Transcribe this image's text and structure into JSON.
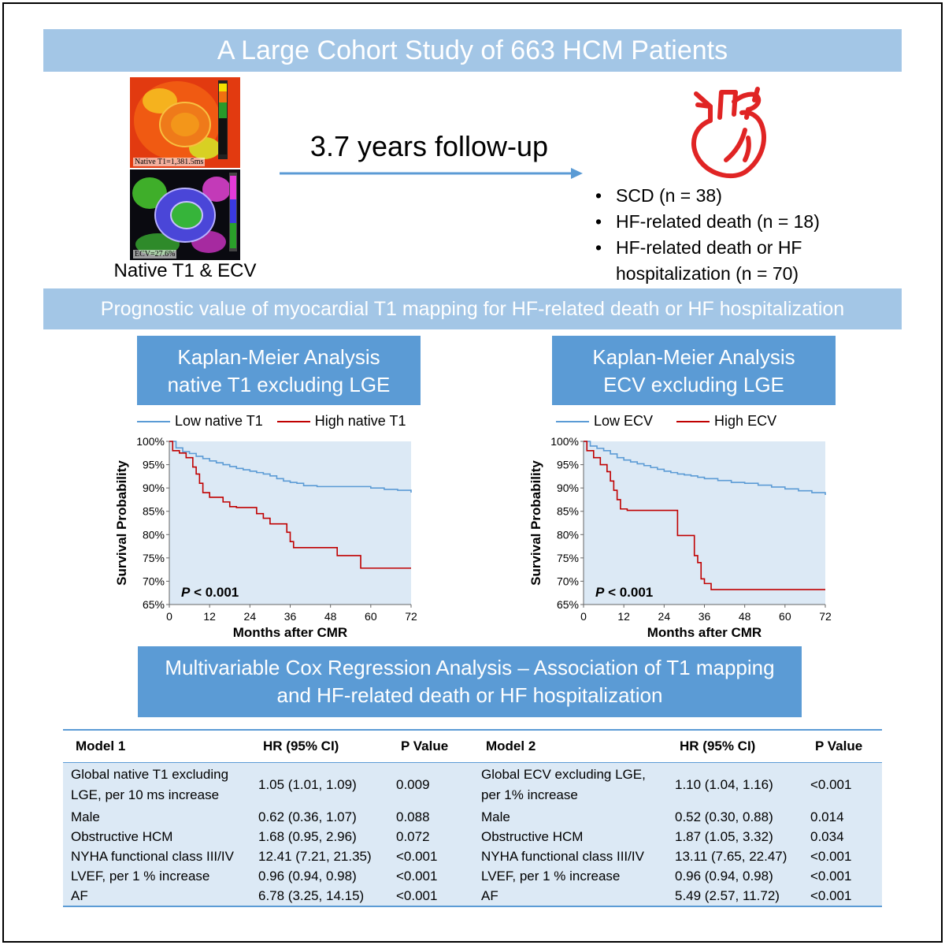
{
  "title": "A Large Cohort Study of 663 HCM Patients",
  "mri": {
    "native_label": "Native T1=1,381.5ms",
    "ecv_label": "ECV=27.6%",
    "caption": "Native T1 & ECV"
  },
  "follow_up": "3.7 years follow-up",
  "outcomes": [
    "SCD (n = 38)",
    "HF-related death (n = 18)",
    "HF-related death or HF hospitalization (n = 70)"
  ],
  "section2_title": "Prognostic value of myocardial T1 mapping for HF-related death or HF hospitalization",
  "km_titles": {
    "left_line1": "Kaplan-Meier Analysis",
    "left_line2": "native T1 excluding LGE",
    "right_line1": "Kaplan-Meier Analysis",
    "right_line2": "ECV excluding LGE"
  },
  "colors": {
    "low": "#5b9bd5",
    "high": "#c00000",
    "plot_bg": "#dce9f5"
  },
  "chart_data": [
    {
      "type": "line",
      "xlabel": "Months after CMR",
      "ylabel": "Survival Probability",
      "xlim": [
        0,
        72
      ],
      "ylim": [
        65,
        100
      ],
      "xticks": [
        "0",
        "12",
        "24",
        "36",
        "48",
        "60",
        "72"
      ],
      "yticks": [
        "65%",
        "70%",
        "75%",
        "80%",
        "85%",
        "90%",
        "95%",
        "100%"
      ],
      "annotation_p": "P",
      "annotation_rest": " < 0.001",
      "series": [
        {
          "name": "Low native T1",
          "x": [
            0,
            2,
            4,
            6,
            8,
            10,
            12,
            14,
            16,
            18,
            20,
            22,
            24,
            26,
            28,
            30,
            32,
            34,
            36,
            38,
            40,
            44,
            48,
            52,
            56,
            60,
            64,
            68,
            71,
            72
          ],
          "y": [
            100,
            98.6,
            97.8,
            97.4,
            96.8,
            96.3,
            95.8,
            95.4,
            95.0,
            94.6,
            94.2,
            93.9,
            93.6,
            93.3,
            93.0,
            92.6,
            92.0,
            91.5,
            91.2,
            91.0,
            90.5,
            90.3,
            90.3,
            90.3,
            90.3,
            90.0,
            89.7,
            89.5,
            89.5,
            89.0
          ]
        },
        {
          "name": "High native T1",
          "x": [
            0,
            1,
            3,
            5,
            7,
            8,
            9,
            10,
            12,
            16,
            18,
            20,
            24,
            26,
            28,
            30,
            32,
            35,
            36,
            37,
            40,
            46,
            50,
            56,
            57,
            60,
            72
          ],
          "y": [
            100,
            98,
            97.5,
            96.5,
            94.5,
            93,
            91,
            89,
            88,
            87,
            86,
            85.8,
            85.8,
            84.5,
            83.5,
            82.3,
            82.3,
            80.5,
            78.5,
            77.2,
            77.2,
            77.2,
            75.5,
            75.5,
            72.8,
            72.8,
            72.8
          ]
        }
      ]
    },
    {
      "type": "line",
      "xlabel": "Months after CMR",
      "ylabel": "Survival Probability",
      "xlim": [
        0,
        72
      ],
      "ylim": [
        65,
        100
      ],
      "xticks": [
        "0",
        "12",
        "24",
        "36",
        "48",
        "60",
        "72"
      ],
      "yticks": [
        "65%",
        "70%",
        "75%",
        "80%",
        "85%",
        "90%",
        "95%",
        "100%"
      ],
      "annotation_p": "P",
      "annotation_rest": " < 0.001",
      "series": [
        {
          "name": "Low ECV",
          "x": [
            0,
            2,
            4,
            6,
            8,
            10,
            12,
            14,
            16,
            18,
            20,
            22,
            24,
            26,
            28,
            30,
            32,
            34,
            36,
            40,
            44,
            48,
            52,
            56,
            60,
            64,
            68,
            71,
            72
          ],
          "y": [
            100,
            99,
            98.5,
            98,
            97.3,
            96.5,
            96,
            95.6,
            95.2,
            94.8,
            94.4,
            94.0,
            93.6,
            93.3,
            93.0,
            92.8,
            92.6,
            92.3,
            92.0,
            91.6,
            91.2,
            91.0,
            90.6,
            90.2,
            89.8,
            89.4,
            89.0,
            89.0,
            88.5
          ]
        },
        {
          "name": "High ECV",
          "x": [
            0,
            1,
            3,
            5,
            7,
            8,
            9,
            10,
            11,
            13,
            20,
            24,
            27,
            28,
            32,
            33,
            34,
            35,
            36,
            38,
            44,
            50,
            56,
            72
          ],
          "y": [
            100,
            98,
            96.5,
            95,
            93.5,
            91.5,
            89.5,
            87.5,
            85.5,
            85.2,
            85.2,
            85.2,
            85.2,
            79.8,
            79.8,
            75.5,
            74,
            70.5,
            69.5,
            68.2,
            68.2,
            68.2,
            68.2,
            68.2
          ]
        }
      ]
    }
  ],
  "cox": {
    "title_line1": "Multivariable Cox Regression Analysis – Association of T1 mapping",
    "title_line2": "and HF-related death or HF hospitalization",
    "headers": [
      "Model 1",
      "HR (95% CI)",
      "P Value",
      "Model 2",
      "HR (95% CI)",
      "P Value"
    ],
    "rows": [
      [
        "Global native T1 excluding LGE, per 10 ms increase",
        "1.05 (1.01, 1.09)",
        "0.009",
        "Global ECV excluding LGE, per 1% increase",
        "1.10 (1.04, 1.16)",
        "<0.001"
      ],
      [
        "Male",
        "0.62 (0.36, 1.07)",
        "0.088",
        "Male",
        "0.52 (0.30, 0.88)",
        "0.014"
      ],
      [
        "Obstructive HCM",
        "1.68 (0.95, 2.96)",
        "0.072",
        "Obstructive HCM",
        "1.87 (1.05, 3.32)",
        "0.034"
      ],
      [
        "NYHA functional class III/IV",
        "12.41 (7.21, 21.35)",
        "<0.001",
        "NYHA functional class III/IV",
        "13.11 (7.65, 22.47)",
        "<0.001"
      ],
      [
        "LVEF, per 1 % increase",
        "0.96 (0.94, 0.98)",
        "<0.001",
        "LVEF, per 1 % increase",
        "0.96 (0.94, 0.98)",
        "<0.001"
      ],
      [
        "AF",
        "6.78 (3.25, 14.15)",
        "<0.001",
        "AF",
        "5.49 (2.57, 11.72)",
        "<0.001"
      ]
    ]
  }
}
